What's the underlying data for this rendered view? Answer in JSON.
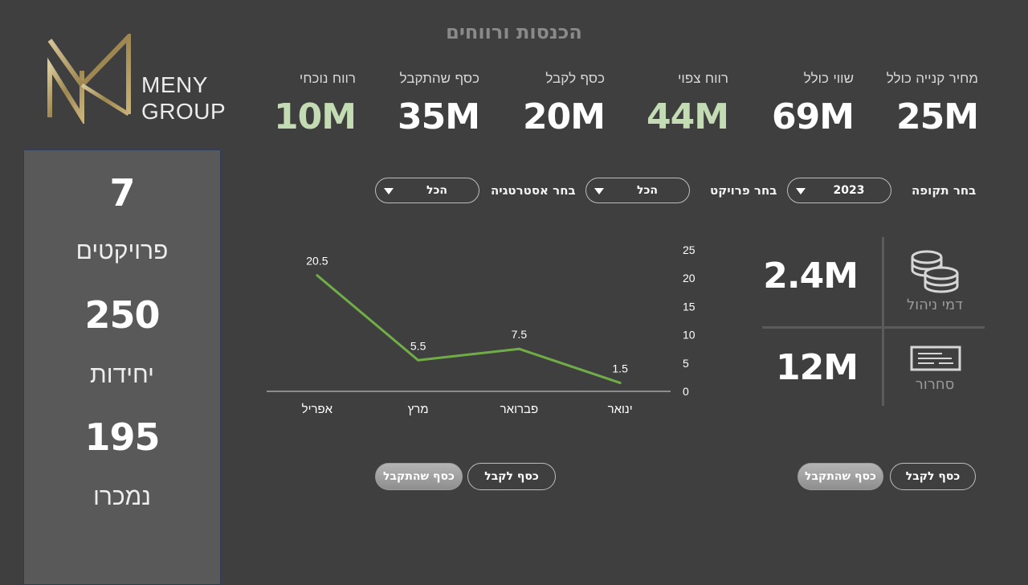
{
  "page_title": "הכנסות ורווחים",
  "logo": {
    "line1": "MENY",
    "line2": "GROUP"
  },
  "kpis": [
    {
      "label": "מחיר קנייה כולל",
      "value": "25M",
      "color": "#ffffff"
    },
    {
      "label": "שווי כולל",
      "value": "69M",
      "color": "#ffffff"
    },
    {
      "label": "רווח צפוי",
      "value": "44M",
      "color": "#c4dcb4"
    },
    {
      "label": "כסף לקבל",
      "value": "20M",
      "color": "#ffffff"
    },
    {
      "label": "כסף שהתקבל",
      "value": "35M",
      "color": "#ffffff"
    },
    {
      "label": "רווח נוכחי",
      "value": "10M",
      "color": "#c4dcb4"
    }
  ],
  "side_panel": {
    "projects_count": "7",
    "projects_label": "פרויקטים",
    "units_count": "250",
    "units_label": "יחידות",
    "sold_count": "195",
    "sold_label": "נמכרו"
  },
  "filters": {
    "period_label": "בחר תקופה",
    "period_value": "2023",
    "project_label": "בחר פרויקט",
    "project_value": "הכל",
    "strategy_label": "בחר אסטרטגיה",
    "strategy_value": "הכל"
  },
  "stats": {
    "management_fee_value": "2.4M",
    "management_fee_label": "דמי ניהול",
    "management_fee_icon": "coins-icon",
    "release_value": "12M",
    "release_label": "סחרור",
    "release_icon": "check-icon"
  },
  "toggles": {
    "left_received": "כסף שהתקבל",
    "left_receivable": "כסף לקבל",
    "right_received": "כסף שהתקבל",
    "right_receivable": "כסף לקבל"
  },
  "chart_data": {
    "type": "line",
    "categories": [
      "אפריל",
      "מרץ",
      "פברואר",
      "ינואר"
    ],
    "values": [
      20.5,
      5.5,
      7.5,
      1.5
    ],
    "data_labels": [
      "20.5",
      "5.5",
      "7.5",
      "1.5"
    ],
    "yticks": [
      0,
      5,
      10,
      15,
      20,
      25
    ],
    "ylim": [
      0,
      25
    ],
    "y_axis_side": "right",
    "grid": false,
    "line_color": "#70ad47",
    "title": "",
    "xlabel": "",
    "ylabel": ""
  }
}
